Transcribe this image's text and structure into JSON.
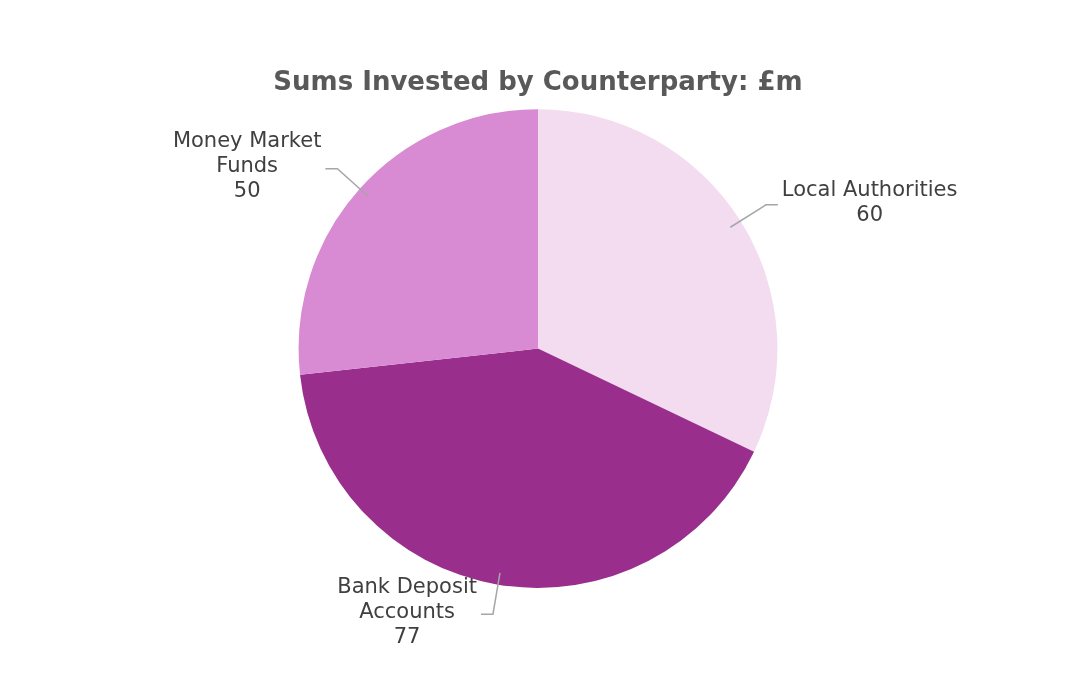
{
  "chart_data": {
    "type": "pie",
    "title": "Sums Invested by Counterparty: £m",
    "categories": [
      "Local Authorities",
      "Bank Deposit Accounts",
      "Money Market Funds"
    ],
    "values": [
      60,
      77,
      50
    ],
    "colors": [
      "#f3dcf0",
      "#9a2e8c",
      "#d88bd3"
    ],
    "data_labels": true,
    "legend": false
  }
}
